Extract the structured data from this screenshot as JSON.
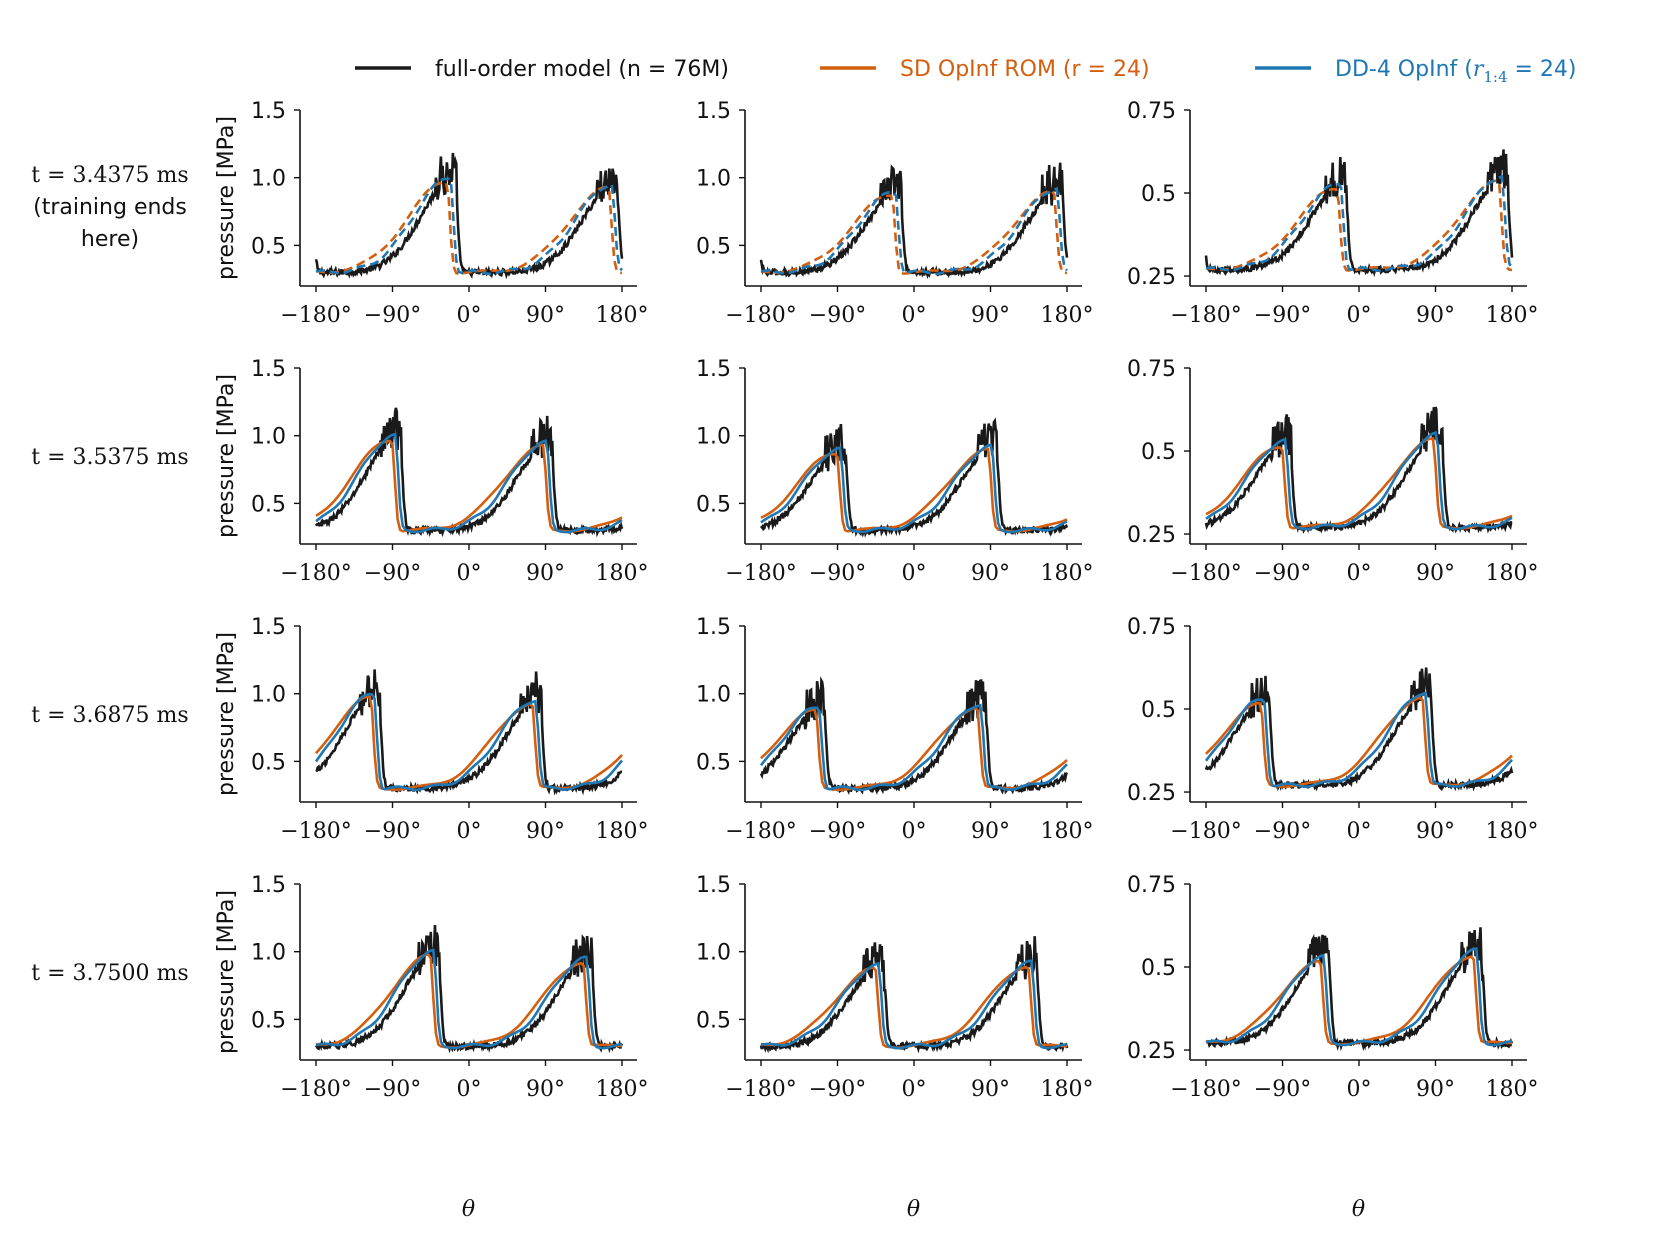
{
  "chart_data": {
    "type": "line",
    "legend": {
      "placement": "top",
      "entries": [
        {
          "key": "fom",
          "prefix": "full-order model (n = 76M)",
          "suffix": "",
          "color": "#1a1a1a",
          "style": "solid"
        },
        {
          "key": "sd",
          "prefix": "SD OpInf ROM (r = 24)",
          "suffix": "",
          "color": "#d35f0f",
          "style": "solid"
        },
        {
          "key": "dd",
          "prefix": "DD-4 OpInf (",
          "math": "r",
          "sub": "1:4",
          "suffix": " = 24)",
          "color": "#1f77b4",
          "style": "solid"
        }
      ]
    },
    "ylabel": "pressure [MPa]",
    "xlabel": "θ",
    "xlim": [
      -180,
      180
    ],
    "xticks": [
      "−180°",
      "−90°",
      "0°",
      "90°",
      "180°"
    ],
    "column_ylims": [
      [
        0.2,
        1.5
      ],
      [
        0.2,
        1.5
      ],
      [
        0.22,
        0.75
      ]
    ],
    "column_ytick_values": [
      [
        0.5,
        1.0,
        1.5
      ],
      [
        0.5,
        1.0,
        1.5
      ],
      [
        0.25,
        0.5,
        0.75
      ]
    ],
    "column_ytick_labels": [
      [
        "0.5",
        "1.0",
        "1.5"
      ],
      [
        "0.5",
        "1.0",
        "1.5"
      ],
      [
        "0.25",
        "0.5",
        "0.75"
      ]
    ],
    "rows": [
      {
        "time_label": "t = 3.4375 ms",
        "extra_lines": [
          "(training ends",
          "here)"
        ],
        "peaks": [
          -20,
          170
        ],
        "dashed": true
      },
      {
        "time_label": "t = 3.5375 ms",
        "extra_lines": [],
        "peaks": [
          -85,
          93
        ],
        "dashed": false
      },
      {
        "time_label": "t = 3.6875 ms",
        "extra_lines": [],
        "peaks": [
          -110,
          80
        ],
        "dashed": false
      },
      {
        "time_label": "t = 3.7500 ms",
        "extra_lines": [],
        "peaks": [
          -40,
          140
        ],
        "dashed": false
      }
    ],
    "column_peak_values": [
      [
        1.0,
        0.95
      ],
      [
        0.9,
        0.92
      ],
      [
        0.53,
        0.55
      ]
    ],
    "column_base_values": [
      0.3,
      0.3,
      0.27
    ],
    "fom_samples": 360,
    "rom_samples": 120
  }
}
